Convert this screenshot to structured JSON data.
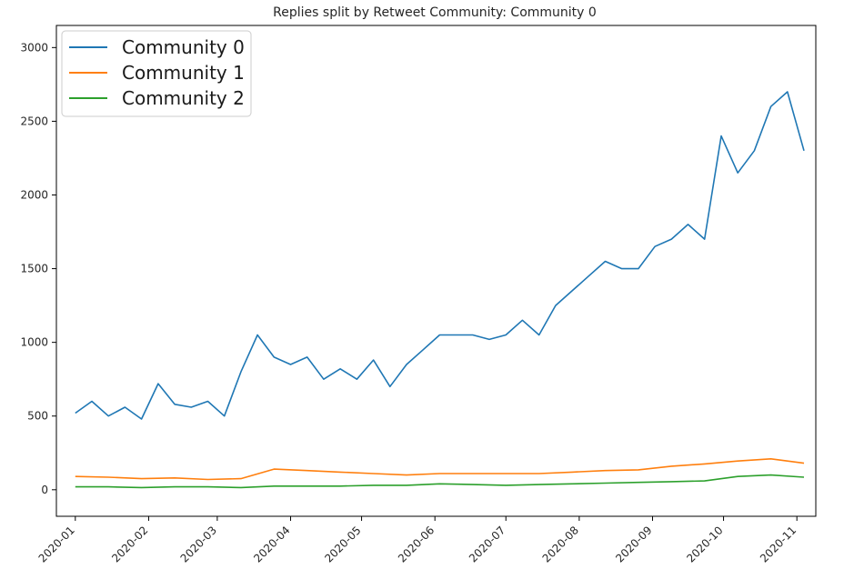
{
  "chart_data": {
    "type": "line",
    "title": "Replies split by Retweet Community: Community 0",
    "xlabel": "",
    "ylabel": "",
    "x_range": [
      "2019-12-24",
      "2020-11-09"
    ],
    "ylim": [
      -180,
      3150
    ],
    "y_ticks": [
      0,
      500,
      1000,
      1500,
      2000,
      2500,
      3000
    ],
    "x_ticks": [
      "2020-01",
      "2020-02",
      "2020-03",
      "2020-04",
      "2020-05",
      "2020-06",
      "2020-07",
      "2020-08",
      "2020-09",
      "2020-10",
      "2020-11"
    ],
    "grid": false,
    "legend": "upper-left",
    "series": [
      {
        "name": "Community 0",
        "color": "#1f77b4",
        "x": [
          "2020-01-01",
          "2020-01-08",
          "2020-01-15",
          "2020-01-22",
          "2020-01-29",
          "2020-02-05",
          "2020-02-12",
          "2020-02-19",
          "2020-02-26",
          "2020-03-04",
          "2020-03-11",
          "2020-03-18",
          "2020-03-25",
          "2020-04-01",
          "2020-04-08",
          "2020-04-15",
          "2020-04-22",
          "2020-04-29",
          "2020-05-06",
          "2020-05-13",
          "2020-05-20",
          "2020-05-27",
          "2020-06-03",
          "2020-06-10",
          "2020-06-17",
          "2020-06-24",
          "2020-07-01",
          "2020-07-08",
          "2020-07-15",
          "2020-07-22",
          "2020-07-29",
          "2020-08-05",
          "2020-08-12",
          "2020-08-19",
          "2020-08-26",
          "2020-09-02",
          "2020-09-09",
          "2020-09-16",
          "2020-09-23",
          "2020-09-30",
          "2020-10-07",
          "2020-10-14",
          "2020-10-21",
          "2020-10-28",
          "2020-11-04"
        ],
        "values": [
          520,
          600,
          500,
          560,
          480,
          720,
          580,
          560,
          600,
          500,
          800,
          1050,
          900,
          850,
          900,
          750,
          820,
          750,
          880,
          700,
          850,
          950,
          1050,
          1050,
          1050,
          1020,
          1050,
          1150,
          1050,
          1250,
          1350,
          1450,
          1550,
          1500,
          1500,
          1650,
          1700,
          1800,
          1700,
          2400,
          2150,
          2300,
          2600,
          2700,
          2300
        ]
      },
      {
        "name": "Community 1",
        "color": "#ff7f0e",
        "x": [
          "2020-01-01",
          "2020-01-15",
          "2020-01-29",
          "2020-02-12",
          "2020-02-26",
          "2020-03-11",
          "2020-03-25",
          "2020-04-08",
          "2020-04-22",
          "2020-05-06",
          "2020-05-20",
          "2020-06-03",
          "2020-06-17",
          "2020-07-01",
          "2020-07-15",
          "2020-07-29",
          "2020-08-12",
          "2020-08-26",
          "2020-09-09",
          "2020-09-23",
          "2020-10-07",
          "2020-10-21",
          "2020-11-04"
        ],
        "values": [
          90,
          85,
          75,
          80,
          70,
          75,
          140,
          130,
          120,
          110,
          100,
          110,
          110,
          110,
          110,
          120,
          130,
          135,
          160,
          175,
          195,
          210,
          180
        ]
      },
      {
        "name": "Community 2",
        "color": "#2ca02c",
        "x": [
          "2020-01-01",
          "2020-01-15",
          "2020-01-29",
          "2020-02-12",
          "2020-02-26",
          "2020-03-11",
          "2020-03-25",
          "2020-04-08",
          "2020-04-22",
          "2020-05-06",
          "2020-05-20",
          "2020-06-03",
          "2020-06-17",
          "2020-07-01",
          "2020-07-15",
          "2020-07-29",
          "2020-08-12",
          "2020-08-26",
          "2020-09-09",
          "2020-09-23",
          "2020-10-07",
          "2020-10-21",
          "2020-11-04"
        ],
        "values": [
          20,
          20,
          15,
          20,
          20,
          15,
          25,
          25,
          25,
          30,
          30,
          40,
          35,
          30,
          35,
          40,
          45,
          50,
          55,
          60,
          90,
          100,
          85
        ]
      }
    ]
  }
}
